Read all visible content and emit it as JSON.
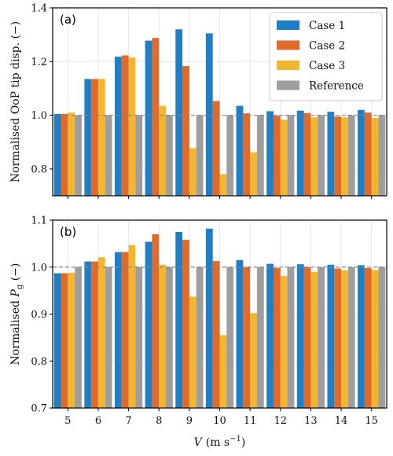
{
  "chart_data": [
    {
      "type": "bar",
      "panel_label": "(a)",
      "ylabel": "Normalised OoP tip disp. (−)",
      "ylim": [
        0.7,
        1.4
      ],
      "yticks": [
        "0.8",
        "1.0",
        "1.2",
        "1.4"
      ],
      "reference_line": 1.0,
      "legend_position": "top-right",
      "categories": [
        "5",
        "6",
        "7",
        "8",
        "9",
        "10",
        "11",
        "12",
        "13",
        "14",
        "15"
      ],
      "series": [
        {
          "name": "Case 1",
          "color": "#1f7ec4",
          "values": [
            1.005,
            1.135,
            1.218,
            1.278,
            1.32,
            1.305,
            1.035,
            1.015,
            1.017,
            1.013,
            1.02
          ]
        },
        {
          "name": "Case 2",
          "color": "#e06a2b",
          "values": [
            1.005,
            1.135,
            1.223,
            1.288,
            1.183,
            1.053,
            1.007,
            0.998,
            1.008,
            0.995,
            1.01
          ]
        },
        {
          "name": "Case 3",
          "color": "#f2b631",
          "values": [
            1.01,
            1.135,
            1.215,
            1.035,
            0.877,
            0.78,
            0.862,
            0.983,
            0.992,
            0.992,
            0.99
          ]
        },
        {
          "name": "Reference",
          "color": "#9e9e9e",
          "values": [
            1.0,
            1.0,
            1.0,
            1.0,
            1.0,
            1.0,
            1.0,
            1.0,
            1.0,
            1.0,
            1.0
          ]
        }
      ]
    },
    {
      "type": "bar",
      "panel_label": "(b)",
      "ylabel_prefix": "Normalised ",
      "ylabel_symbol": "P",
      "ylabel_sub": "g",
      "ylabel_suffix": " (−)",
      "ylim": [
        0.7,
        1.1
      ],
      "yticks": [
        "0.7",
        "0.8",
        "0.9",
        "1.0",
        "1.1"
      ],
      "reference_line": 1.0,
      "xlabel_symbol": "V",
      "xlabel_units": "(m s",
      "xlabel_exp": "−1",
      "xlabel_close": ")",
      "categories": [
        "5",
        "6",
        "7",
        "8",
        "9",
        "10",
        "11",
        "12",
        "13",
        "14",
        "15"
      ],
      "series": [
        {
          "name": "Case 1",
          "color": "#1f7ec4",
          "values": [
            0.987,
            1.012,
            1.032,
            1.054,
            1.075,
            1.082,
            1.015,
            1.007,
            1.006,
            1.005,
            1.004
          ]
        },
        {
          "name": "Case 2",
          "color": "#e06a2b",
          "values": [
            0.987,
            1.012,
            1.032,
            1.07,
            1.058,
            1.013,
            1.0,
            0.998,
            1.0,
            0.997,
            0.998
          ]
        },
        {
          "name": "Case 3",
          "color": "#f2b631",
          "values": [
            0.988,
            1.021,
            1.047,
            1.005,
            0.937,
            0.855,
            0.902,
            0.981,
            0.99,
            0.993,
            0.994
          ]
        },
        {
          "name": "Reference",
          "color": "#9e9e9e",
          "values": [
            1.0,
            1.0,
            1.0,
            1.0,
            1.0,
            1.0,
            1.0,
            1.0,
            1.0,
            1.0,
            1.0
          ]
        }
      ]
    }
  ]
}
